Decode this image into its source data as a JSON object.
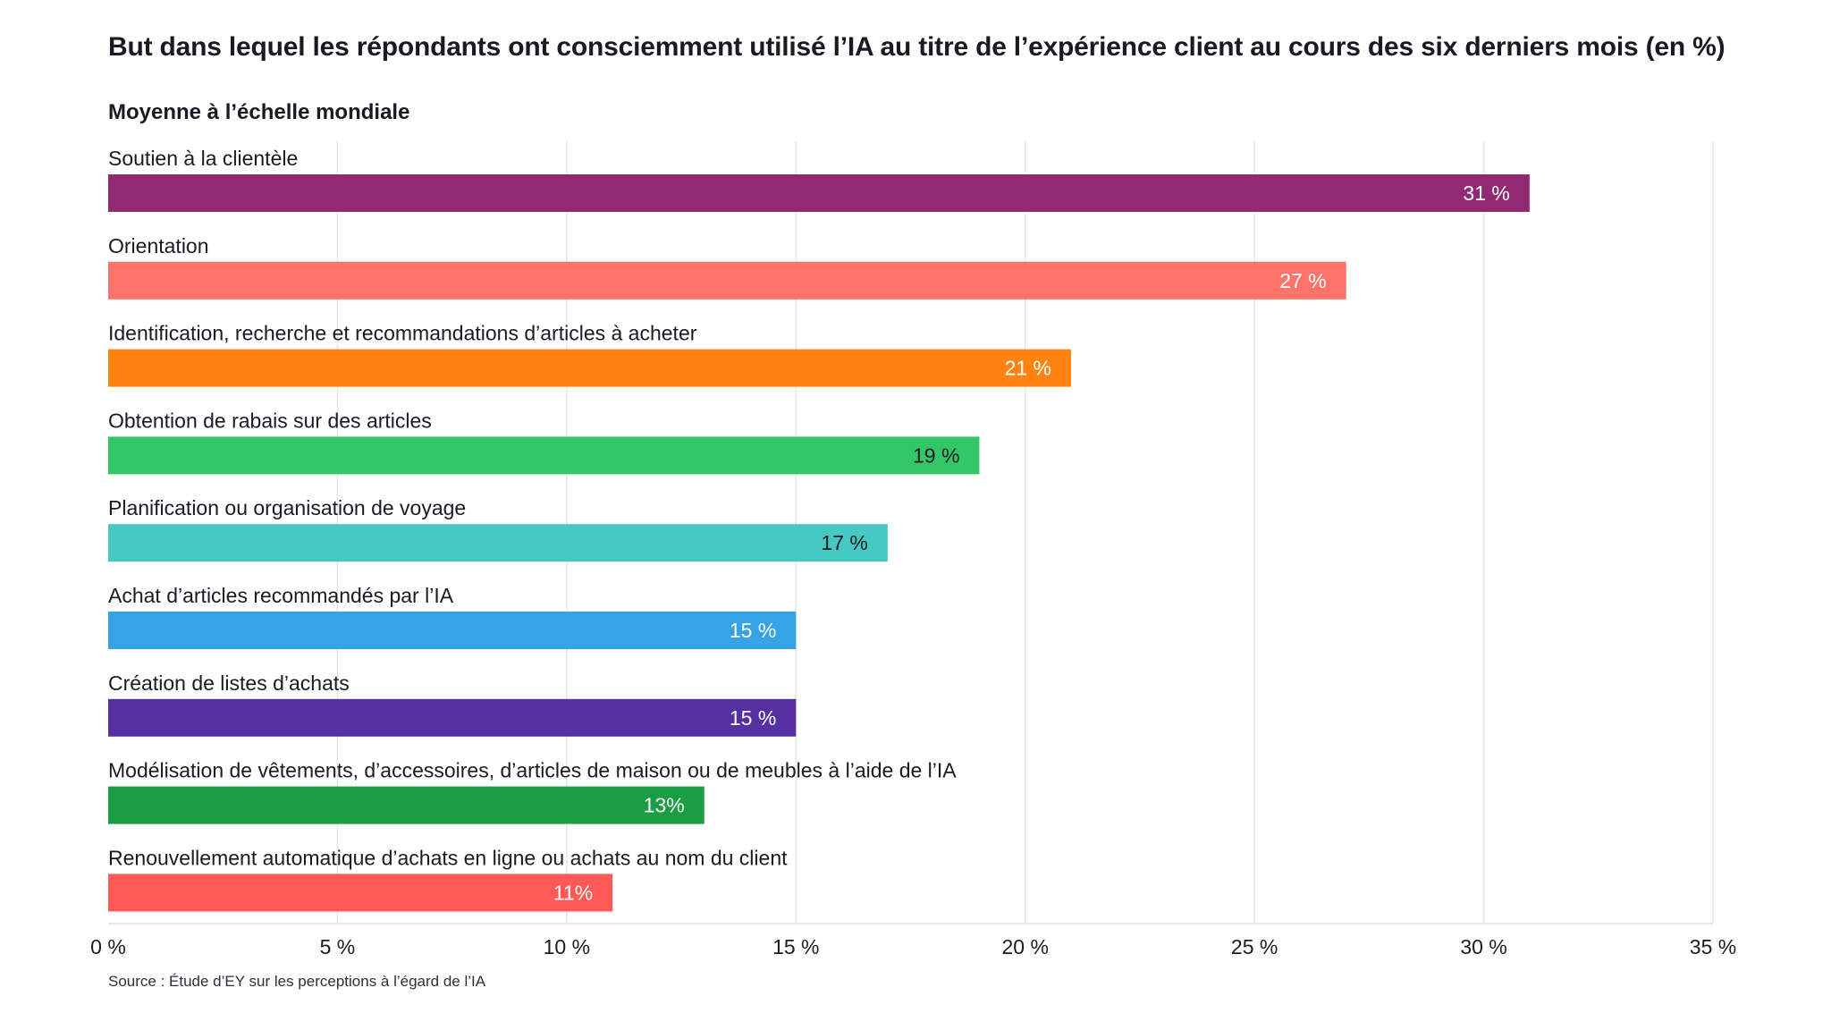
{
  "chart_data": {
    "type": "bar",
    "orientation": "horizontal",
    "title": "But dans lequel les répondants ont consciemment utilisé l’IA au titre de l’expérience client au cours des six derniers mois (en %)",
    "subtitle": "Moyenne à l’échelle mondiale",
    "categories": [
      "Soutien à la clientèle",
      "Orientation",
      "Identification, recherche et recommandations d’articles à acheter",
      "Obtention de rabais sur des articles",
      "Planification ou organisation de voyage",
      "Achat d’articles recommandés par l’IA",
      "Création de listes d’achats",
      "Modélisation de vêtements, d’accessoires, d’articles de maison ou de meubles à l’aide de l’IA",
      "Renouvellement automatique d’achats en ligne ou achats au nom du client"
    ],
    "values": [
      31,
      27,
      21,
      19,
      17,
      15,
      15,
      13,
      11
    ],
    "data_labels": [
      "31 %",
      "27 %",
      "21 %",
      "19 %",
      "17 %",
      "15 %",
      "15 %",
      "13%",
      "11%"
    ],
    "colors": [
      "#902a73",
      "#ff736a",
      "#ff8310",
      "#34c768",
      "#45c9c2",
      "#35a3e5",
      "#5430a3",
      "#1a9e43",
      "#ff5a57"
    ],
    "label_colors": [
      "#ffffff",
      "#ffffff",
      "#ffffff",
      "#1a1a24",
      "#1a1a24",
      "#ffffff",
      "#ffffff",
      "#ffffff",
      "#ffffff"
    ],
    "xlim": [
      0,
      35
    ],
    "x_ticks": [
      0,
      5,
      10,
      15,
      20,
      25,
      30,
      35
    ],
    "x_tick_labels": [
      "0 %",
      "5 %",
      "10 %",
      "15 %",
      "20 %",
      "25 %",
      "30 %",
      "35 %"
    ],
    "grid": true,
    "legend": "none"
  },
  "source": "Source : Étude d’EY sur les perceptions à l’égard de l’IA"
}
